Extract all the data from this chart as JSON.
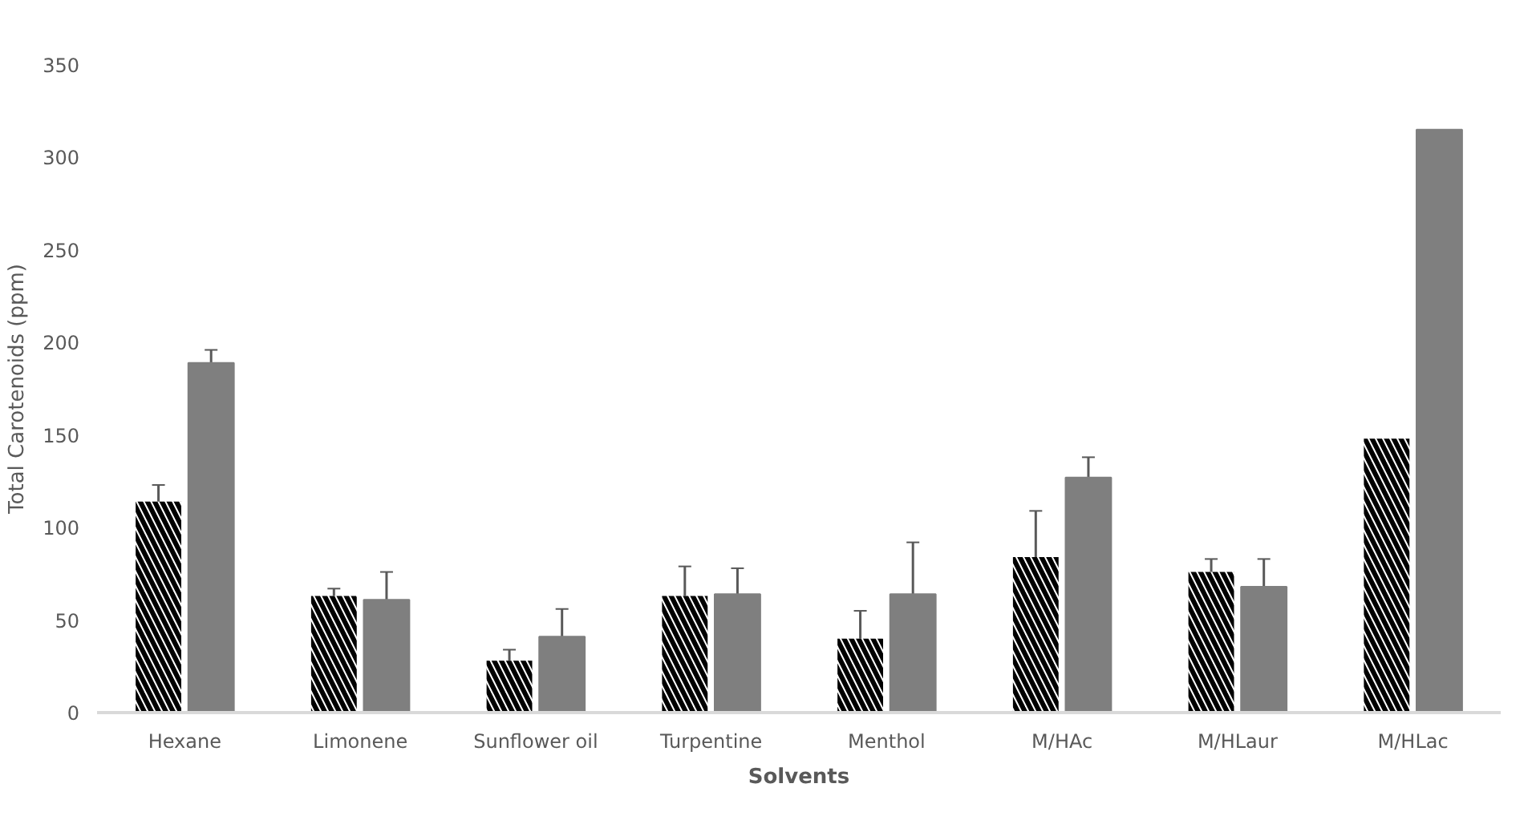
{
  "chart_data": {
    "type": "bar",
    "xlabel": "Solvents",
    "ylabel": "Total Carotenoids (ppm)",
    "categories": [
      "Hexane",
      "Limonene",
      "Sunflower oil",
      "Turpentine",
      "Menthol",
      "M/HAc",
      "M/HLaur",
      "M/HLac"
    ],
    "series": [
      {
        "color": "#000000",
        "values": [
          114,
          63,
          28,
          63,
          40,
          84,
          76,
          148
        ],
        "errors": [
          9,
          4,
          6,
          16,
          15,
          25,
          7,
          null
        ]
      },
      {
        "color": "#7f7f7f",
        "values": [
          189,
          61,
          41,
          64,
          64,
          127,
          68,
          315
        ],
        "errors": [
          7,
          15,
          15,
          14,
          28,
          11,
          15,
          null
        ]
      }
    ],
    "ylim": [
      0,
      350
    ],
    "yticks": [
      0,
      50,
      100,
      150,
      200,
      250,
      300,
      350
    ]
  }
}
